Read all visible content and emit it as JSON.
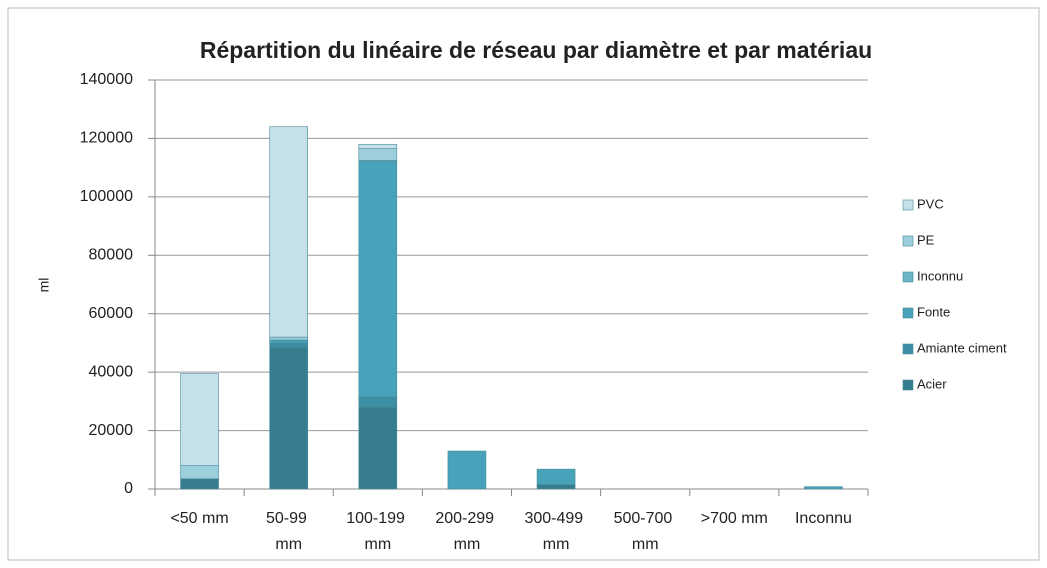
{
  "chart_data": {
    "type": "stacked_bar",
    "title": "Répartition du linéaire de réseau par diamètre et par matériau",
    "y_label": "ml",
    "categories": [
      "<50 mm",
      "50-99 mm",
      "100-199 mm",
      "200-299 mm",
      "300-499 mm",
      "500-700 mm",
      ">700 mm",
      "Inconnu"
    ],
    "series": [
      {
        "name": "Acier",
        "color": "#367d8f",
        "values": [
          3500,
          48500,
          28000,
          0,
          1500,
          0,
          0,
          0
        ]
      },
      {
        "name": "Amiante ciment",
        "color": "#3b8ea3",
        "values": [
          0,
          1500,
          3500,
          0,
          0,
          0,
          0,
          0
        ]
      },
      {
        "name": "Fonte",
        "color": "#48a3ba",
        "values": [
          0,
          1000,
          80500,
          13000,
          5300,
          0,
          0,
          800
        ]
      },
      {
        "name": "Inconnu",
        "color": "#6bb5c9",
        "values": [
          0,
          0,
          500,
          0,
          0,
          0,
          0,
          0
        ]
      },
      {
        "name": "PE",
        "color": "#9dcedc",
        "values": [
          4500,
          1000,
          4000,
          0,
          0,
          0,
          0,
          0
        ]
      },
      {
        "name": "PVC",
        "color": "#c4e0e9",
        "values": [
          31500,
          72000,
          1500,
          0,
          0,
          0,
          0,
          0
        ]
      }
    ],
    "ylim": [
      0,
      140000
    ],
    "yticks": [
      0,
      20000,
      40000,
      60000,
      80000,
      100000,
      120000,
      140000
    ],
    "grid": true,
    "legend": "right"
  }
}
